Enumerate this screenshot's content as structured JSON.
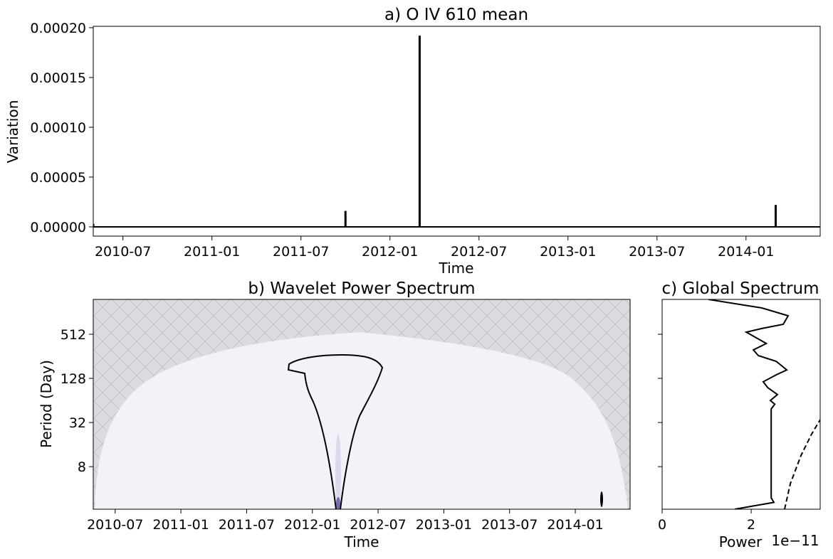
{
  "chart_data": [
    {
      "type": "stem",
      "title": "a) O IV 610 mean",
      "xlabel": "Time",
      "ylabel": "Variation",
      "x": [
        "2010-05",
        "2011-10",
        "2012-03",
        "2014-03"
      ],
      "values": [
        3e-06,
        1.6e-05,
        0.000192,
        2.2e-05
      ],
      "color": "#000000",
      "xlim": [
        "2010-05",
        "2014-06"
      ],
      "xticks": [
        "2010-07",
        "2011-01",
        "2011-07",
        "2012-01",
        "2012-07",
        "2013-01",
        "2013-07",
        "2014-01"
      ],
      "ylim": [
        -9.3e-06,
        0.0002014
      ],
      "yticks": [
        {
          "value": 0,
          "label": "0.00000"
        },
        {
          "value": 5e-05,
          "label": "0.00005"
        },
        {
          "value": 0.0001,
          "label": "0.00010"
        },
        {
          "value": 0.00015,
          "label": "0.00015"
        },
        {
          "value": 0.0002,
          "label": "0.00020"
        }
      ]
    },
    {
      "type": "wavelet",
      "title": "b) Wavelet Power Spectrum",
      "xlabel": "Time",
      "ylabel": "Period (Day)",
      "xlim": [
        "2010-05",
        "2014-06"
      ],
      "xticks": [
        "2010-07",
        "2011-01",
        "2011-07",
        "2012-01",
        "2012-07",
        "2013-01",
        "2013-07",
        "2014-01"
      ],
      "ylim": [
        2.1,
        1530
      ],
      "log_y": true,
      "yticks": [
        8,
        32,
        128,
        512
      ]
    },
    {
      "type": "profile",
      "title": "c) Global Spectrum",
      "xlabel": "Power",
      "x_offset_label": "1e−11",
      "xlim": [
        0,
        3.55e-11
      ],
      "xticks": [
        0,
        {
          "value": 2e-11,
          "label": "2"
        }
      ],
      "ylim": [
        2.1,
        1530
      ],
      "log_y": true,
      "yticks": [
        8,
        32,
        128,
        512
      ],
      "ytick_labels": false,
      "series": [
        {
          "color": "#000000",
          "dashed": false,
          "y": [
            1530,
            1171,
            916,
            700,
            613,
            548,
            383,
            313,
            262,
            219,
            167,
            143,
            115,
            96,
            77,
            64,
            57,
            49,
            3.0,
            2.6,
            2.1
          ],
          "values": [
            1.04e-11,
            2.24e-11,
            2.83e-11,
            2.72e-11,
            2.24e-11,
            1.89e-11,
            2.34e-11,
            2.05e-11,
            2.16e-11,
            2.56e-11,
            2.8e-11,
            2.56e-11,
            2.27e-11,
            2.37e-11,
            2.59e-11,
            2.43e-11,
            2.53e-11,
            2.45e-11,
            2.45e-11,
            2.51e-11,
            1.63e-11
          ]
        },
        {
          "color": "#000000",
          "dashed": true,
          "y": [
            2.1,
            4.7,
            11.4,
            22.4,
            35
          ],
          "values": [
            2.75e-11,
            2.88e-11,
            3.12e-11,
            3.36e-11,
            3.55e-11
          ]
        }
      ]
    }
  ]
}
